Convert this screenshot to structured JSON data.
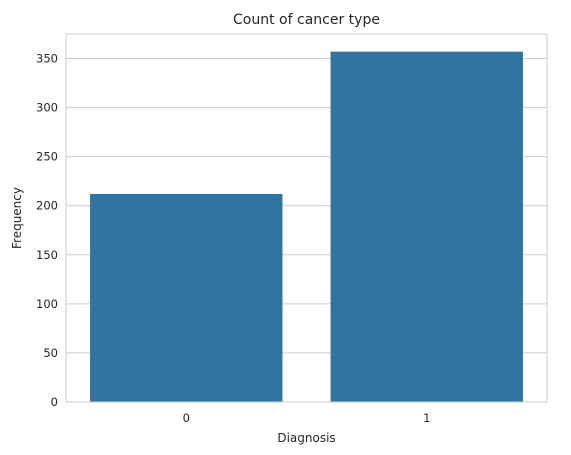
{
  "chart_data": {
    "type": "bar",
    "title": "Count of cancer type",
    "xlabel": "Diagnosis",
    "ylabel": "Frequency",
    "categories": [
      "0",
      "1"
    ],
    "values": [
      212,
      357
    ],
    "ylim": [
      0,
      375
    ],
    "yticks": [
      0,
      50,
      100,
      150,
      200,
      250,
      300,
      350
    ],
    "grid": "horizontal",
    "bar_color": "#3274a1",
    "grid_color": "#cccccc"
  }
}
